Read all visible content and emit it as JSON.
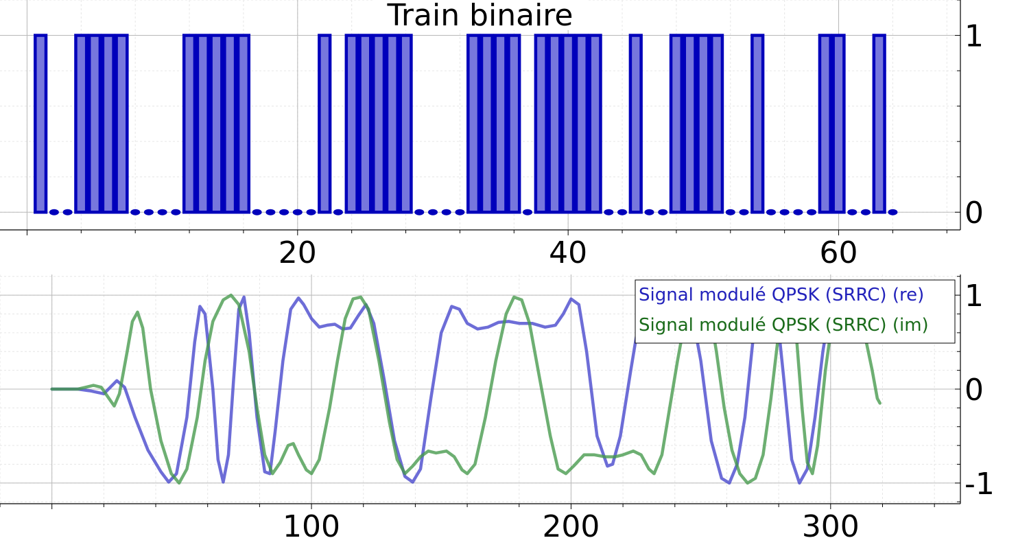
{
  "chart_data": [
    {
      "type": "bar",
      "title": "Train binaire",
      "xlabel": "",
      "ylabel": "",
      "xlim": [
        -2,
        69
      ],
      "ylim": [
        -0.1,
        1.2
      ],
      "x_ticks": [
        20,
        40,
        60
      ],
      "y_ticks": [
        0,
        1
      ],
      "grid": true,
      "bar_color": "#0000bb",
      "bar_fill_color": "#7777dd",
      "marker_color": "#0000bb",
      "x": [
        1,
        2,
        3,
        4,
        5,
        6,
        7,
        8,
        9,
        10,
        11,
        12,
        13,
        14,
        15,
        16,
        17,
        18,
        19,
        20,
        21,
        22,
        23,
        24,
        25,
        26,
        27,
        28,
        29,
        30,
        31,
        32,
        33,
        34,
        35,
        36,
        37,
        38,
        39,
        40,
        41,
        42,
        43,
        44,
        45,
        46,
        47,
        48,
        49,
        50,
        51,
        52,
        53,
        54,
        55,
        56,
        57,
        58,
        59,
        60,
        61,
        62,
        63,
        64
      ],
      "values": [
        1,
        0,
        0,
        1,
        1,
        1,
        1,
        0,
        0,
        0,
        0,
        1,
        1,
        1,
        1,
        1,
        0,
        0,
        0,
        0,
        0,
        1,
        0,
        1,
        1,
        1,
        1,
        1,
        0,
        0,
        0,
        0,
        1,
        1,
        1,
        1,
        0,
        1,
        1,
        1,
        1,
        1,
        0,
        0,
        1,
        0,
        0,
        1,
        1,
        1,
        1,
        0,
        0,
        1,
        0,
        0,
        0,
        0,
        1,
        1,
        0,
        0,
        1,
        0
      ]
    },
    {
      "type": "line",
      "title": "",
      "xlabel": "",
      "ylabel": "",
      "xlim": [
        -20,
        350
      ],
      "ylim": [
        -1.22,
        1.22
      ],
      "x_ticks": [
        100,
        200,
        300
      ],
      "y_ticks": [
        -1,
        0,
        1
      ],
      "grid": true,
      "legend_position": "top-right",
      "series": [
        {
          "name": "Signal modulé QPSK (SRRC) (re)",
          "color": "#4444cc",
          "points": [
            [
              0,
              0
            ],
            [
              10,
              0
            ],
            [
              15,
              -0.02
            ],
            [
              20,
              -0.05
            ],
            [
              25,
              0.09
            ],
            [
              28,
              0.02
            ],
            [
              32,
              -0.3
            ],
            [
              37,
              -0.65
            ],
            [
              42,
              -0.88
            ],
            [
              45,
              -0.99
            ],
            [
              48,
              -0.9
            ],
            [
              52,
              -0.3
            ],
            [
              55,
              0.5
            ],
            [
              57,
              0.88
            ],
            [
              59,
              0.8
            ],
            [
              62,
              0
            ],
            [
              64,
              -0.75
            ],
            [
              66,
              -0.99
            ],
            [
              68,
              -0.7
            ],
            [
              70,
              0.1
            ],
            [
              72,
              0.85
            ],
            [
              74,
              0.98
            ],
            [
              76,
              0.6
            ],
            [
              79,
              -0.3
            ],
            [
              82,
              -0.88
            ],
            [
              84,
              -0.9
            ],
            [
              86,
              -0.45
            ],
            [
              89,
              0.3
            ],
            [
              92,
              0.85
            ],
            [
              95,
              0.97
            ],
            [
              97,
              0.9
            ],
            [
              100,
              0.75
            ],
            [
              103,
              0.66
            ],
            [
              106,
              0.68
            ],
            [
              109,
              0.69
            ],
            [
              112,
              0.64
            ],
            [
              115,
              0.65
            ],
            [
              118,
              0.78
            ],
            [
              121,
              0.9
            ],
            [
              124,
              0.7
            ],
            [
              128,
              0.1
            ],
            [
              132,
              -0.55
            ],
            [
              136,
              -0.93
            ],
            [
              139,
              -0.99
            ],
            [
              142,
              -0.85
            ],
            [
              146,
              -0.1
            ],
            [
              150,
              0.6
            ],
            [
              154,
              0.88
            ],
            [
              157,
              0.85
            ],
            [
              160,
              0.7
            ],
            [
              164,
              0.64
            ],
            [
              168,
              0.66
            ],
            [
              172,
              0.71
            ],
            [
              176,
              0.72
            ],
            [
              180,
              0.7
            ],
            [
              185,
              0.7
            ],
            [
              190,
              0.66
            ],
            [
              194,
              0.68
            ],
            [
              197,
              0.8
            ],
            [
              200,
              0.96
            ],
            [
              203,
              0.9
            ],
            [
              206,
              0.4
            ],
            [
              210,
              -0.5
            ],
            [
              214,
              -0.82
            ],
            [
              216,
              -0.8
            ],
            [
              219,
              -0.5
            ],
            [
              223,
              0.2
            ],
            [
              226,
              0.7
            ],
            [
              228,
              0.95
            ],
            [
              231,
              1.1
            ],
            [
              235,
              1.15
            ],
            [
              238,
              1.1
            ],
            [
              241,
              1.0
            ],
            [
              246,
              0.9
            ],
            [
              250,
              0.3
            ],
            [
              254,
              -0.55
            ],
            [
              258,
              -0.95
            ],
            [
              261,
              -1.0
            ],
            [
              264,
              -0.8
            ],
            [
              267,
              -0.3
            ],
            [
              270,
              0.5
            ],
            [
              273,
              1.05
            ],
            [
              276,
              1.15
            ],
            [
              279,
              0.9
            ],
            [
              282,
              0.1
            ],
            [
              285,
              -0.75
            ],
            [
              288,
              -1.0
            ],
            [
              291,
              -0.85
            ],
            [
              294,
              -0.3
            ],
            [
              297,
              0.4
            ],
            [
              300,
              0.9
            ],
            [
              303,
              1.1
            ],
            [
              306,
              1.15
            ],
            [
              310,
              1.1
            ]
          ]
        },
        {
          "name": "Signal modulé QPSK (SRRC) (im)",
          "color": "#44994a",
          "points": [
            [
              0,
              0
            ],
            [
              10,
              0
            ],
            [
              13,
              0.02
            ],
            [
              16,
              0.04
            ],
            [
              19,
              0.02
            ],
            [
              22,
              -0.1
            ],
            [
              24,
              -0.18
            ],
            [
              26,
              -0.05
            ],
            [
              29,
              0.4
            ],
            [
              31,
              0.72
            ],
            [
              33,
              0.82
            ],
            [
              35,
              0.65
            ],
            [
              38,
              0
            ],
            [
              42,
              -0.55
            ],
            [
              46,
              -0.9
            ],
            [
              49,
              -1.0
            ],
            [
              52,
              -0.85
            ],
            [
              56,
              -0.3
            ],
            [
              59,
              0.3
            ],
            [
              62,
              0.72
            ],
            [
              66,
              0.95
            ],
            [
              69,
              1.0
            ],
            [
              72,
              0.9
            ],
            [
              76,
              0.4
            ],
            [
              79,
              -0.2
            ],
            [
              82,
              -0.7
            ],
            [
              85,
              -0.9
            ],
            [
              88,
              -0.78
            ],
            [
              91,
              -0.6
            ],
            [
              93,
              -0.58
            ],
            [
              95,
              -0.7
            ],
            [
              98,
              -0.86
            ],
            [
              100,
              -0.9
            ],
            [
              103,
              -0.75
            ],
            [
              107,
              -0.2
            ],
            [
              110,
              0.3
            ],
            [
              113,
              0.75
            ],
            [
              116,
              0.96
            ],
            [
              119,
              0.98
            ],
            [
              122,
              0.85
            ],
            [
              126,
              0.3
            ],
            [
              130,
              -0.35
            ],
            [
              133,
              -0.75
            ],
            [
              136,
              -0.9
            ],
            [
              139,
              -0.82
            ],
            [
              142,
              -0.72
            ],
            [
              145,
              -0.66
            ],
            [
              148,
              -0.68
            ],
            [
              152,
              -0.66
            ],
            [
              155,
              -0.72
            ],
            [
              158,
              -0.86
            ],
            [
              160,
              -0.9
            ],
            [
              163,
              -0.8
            ],
            [
              167,
              -0.3
            ],
            [
              171,
              0.3
            ],
            [
              175,
              0.8
            ],
            [
              178,
              0.98
            ],
            [
              181,
              0.95
            ],
            [
              184,
              0.7
            ],
            [
              188,
              0.1
            ],
            [
              192,
              -0.5
            ],
            [
              195,
              -0.85
            ],
            [
              198,
              -0.9
            ],
            [
              201,
              -0.82
            ],
            [
              205,
              -0.7
            ],
            [
              209,
              -0.7
            ],
            [
              213,
              -0.72
            ],
            [
              217,
              -0.72
            ],
            [
              220,
              -0.7
            ],
            [
              224,
              -0.66
            ],
            [
              227,
              -0.7
            ],
            [
              230,
              -0.85
            ],
            [
              232,
              -0.9
            ],
            [
              235,
              -0.7
            ],
            [
              238,
              -0.2
            ],
            [
              241,
              0.3
            ],
            [
              244,
              0.75
            ],
            [
              247,
              1.0
            ],
            [
              250,
              1.1
            ],
            [
              253,
              0.9
            ],
            [
              256,
              0.4
            ],
            [
              259,
              -0.2
            ],
            [
              262,
              -0.65
            ],
            [
              265,
              -0.9
            ],
            [
              268,
              -1.0
            ],
            [
              271,
              -0.95
            ],
            [
              274,
              -0.7
            ],
            [
              277,
              -0.1
            ],
            [
              280,
              0.6
            ],
            [
              283,
              1.0
            ],
            [
              285,
              0.9
            ],
            [
              287,
              0.5
            ],
            [
              289,
              -0.2
            ],
            [
              291,
              -0.78
            ],
            [
              293,
              -0.9
            ],
            [
              295,
              -0.6
            ],
            [
              298,
              0.2
            ],
            [
              301,
              0.8
            ],
            [
              304,
              1.1
            ],
            [
              307,
              1.15
            ],
            [
              310,
              1.0
            ],
            [
              313,
              0.6
            ],
            [
              316,
              0.2
            ],
            [
              318,
              -0.1
            ],
            [
              319,
              -0.15
            ]
          ]
        }
      ]
    }
  ]
}
